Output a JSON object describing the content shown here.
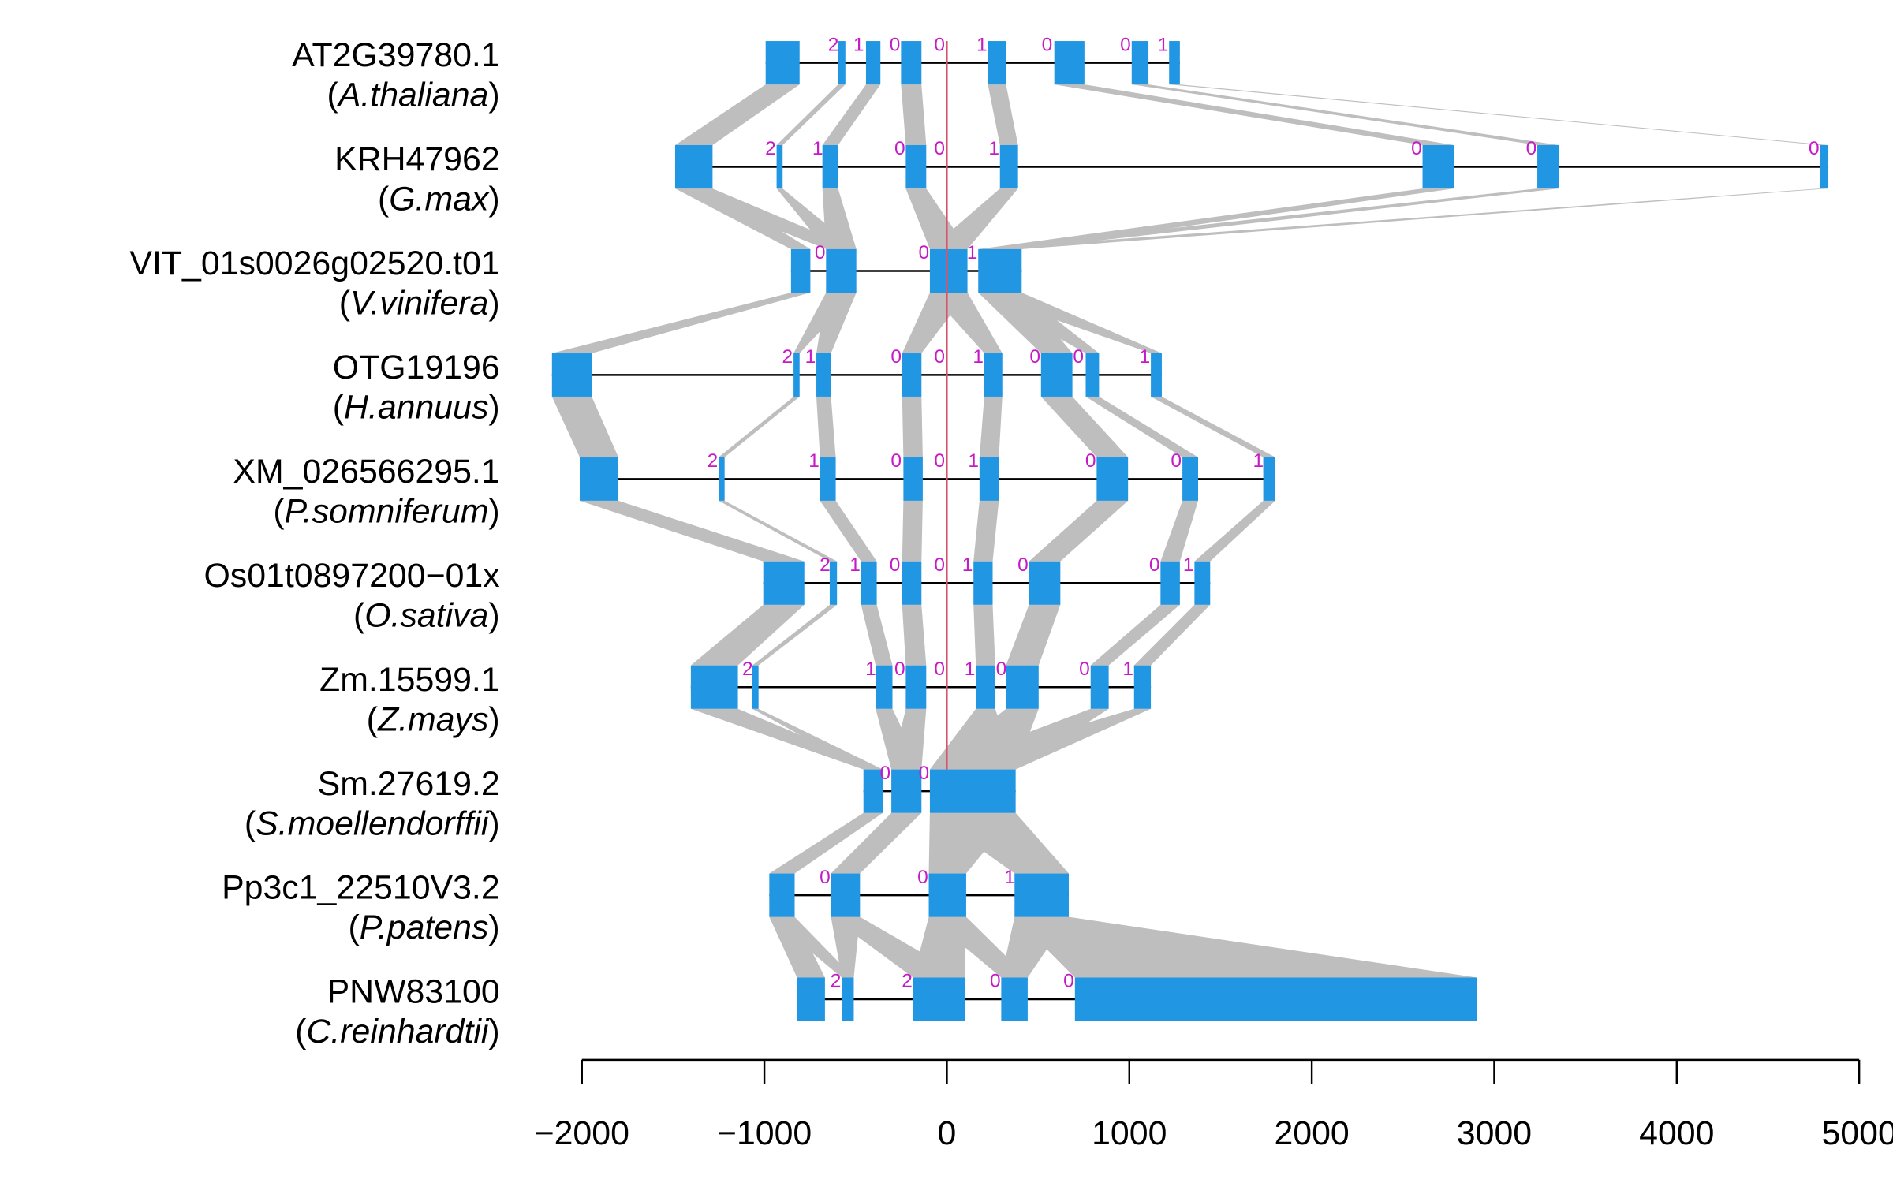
{
  "colors": {
    "exon": "#2196e3",
    "link": "#bebebe",
    "intron": "#000000",
    "phase": "#c71ac7",
    "reference_line": "#d9536a"
  },
  "chart_data": {
    "type": "gene-structure-alignment",
    "xlim": [
      -2000,
      5000
    ],
    "xticks": [
      -2000,
      -1000,
      0,
      1000,
      2000,
      3000,
      4000,
      5000
    ],
    "xtick_labels": [
      "−2000",
      "−1000",
      "0",
      "1000",
      "2000",
      "3000",
      "4000",
      "5000"
    ],
    "reference_position": 0,
    "genes": [
      {
        "id": "AT2G39780.1",
        "species": "A.thaliana",
        "exons": [
          [
            -993,
            -807
          ],
          [
            -596,
            -556
          ],
          [
            -443,
            -364
          ],
          [
            -251,
            -139
          ],
          [
            225,
            324
          ],
          [
            589,
            754
          ],
          [
            1013,
            1105
          ],
          [
            1218,
            1277
          ]
        ],
        "phases": [
          {
            "pos": -622,
            "label": "2"
          },
          {
            "pos": -483,
            "label": "1"
          },
          {
            "pos": -285,
            "label": "0"
          },
          {
            "pos": -40,
            "label": "0"
          },
          {
            "pos": 192,
            "label": "1"
          },
          {
            "pos": 549,
            "label": "0"
          },
          {
            "pos": 979,
            "label": "0"
          },
          {
            "pos": 1185,
            "label": "1"
          }
        ]
      },
      {
        "id": "KRH47962",
        "species": "G.max",
        "exons": [
          [
            -1489,
            -1284
          ],
          [
            -933,
            -900
          ],
          [
            -682,
            -596
          ],
          [
            -225,
            -113
          ],
          [
            291,
            390
          ],
          [
            2607,
            2780
          ],
          [
            3236,
            3355
          ],
          [
            4785,
            4831
          ]
        ],
        "phases": [
          {
            "pos": -966,
            "label": "2"
          },
          {
            "pos": -708,
            "label": "1"
          },
          {
            "pos": -258,
            "label": "0"
          },
          {
            "pos": -40,
            "label": "0"
          },
          {
            "pos": 258,
            "label": "1"
          },
          {
            "pos": 2574,
            "label": "0"
          },
          {
            "pos": 3203,
            "label": "0"
          },
          {
            "pos": 4752,
            "label": "0"
          }
        ]
      },
      {
        "id": "VIT_01s0026g02520.t01",
        "species": "V.vinifera",
        "exons": [
          [
            -854,
            -748
          ],
          [
            -662,
            -496
          ],
          [
            -93,
            113
          ],
          [
            172,
            410
          ]
        ],
        "phases": [
          {
            "pos": -695,
            "label": "0"
          },
          {
            "pos": -126,
            "label": "0"
          },
          {
            "pos": 139,
            "label": "1"
          }
        ]
      },
      {
        "id": "OTG19196",
        "species": "H.annuus",
        "exons": [
          [
            -2164,
            -1946
          ],
          [
            -840,
            -807
          ],
          [
            -715,
            -635
          ],
          [
            -245,
            -139
          ],
          [
            205,
            304
          ],
          [
            516,
            688
          ],
          [
            761,
            834
          ],
          [
            1118,
            1178
          ]
        ],
        "phases": [
          {
            "pos": -874,
            "label": "2"
          },
          {
            "pos": -748,
            "label": "1"
          },
          {
            "pos": -278,
            "label": "0"
          },
          {
            "pos": -40,
            "label": "0"
          },
          {
            "pos": 172,
            "label": "1"
          },
          {
            "pos": 483,
            "label": "0"
          },
          {
            "pos": 721,
            "label": "0"
          },
          {
            "pos": 1085,
            "label": "1"
          }
        ]
      },
      {
        "id": "XM_026566295.1",
        "species": "P.somniferum",
        "exons": [
          [
            -2012,
            -1800
          ],
          [
            -1251,
            -1218
          ],
          [
            -695,
            -609
          ],
          [
            -238,
            -132
          ],
          [
            179,
            285
          ],
          [
            821,
            993
          ],
          [
            1291,
            1377
          ],
          [
            1734,
            1800
          ]
        ],
        "phases": [
          {
            "pos": -1284,
            "label": "2"
          },
          {
            "pos": -728,
            "label": "1"
          },
          {
            "pos": -278,
            "label": "0"
          },
          {
            "pos": -40,
            "label": "0"
          },
          {
            "pos": 146,
            "label": "1"
          },
          {
            "pos": 788,
            "label": "0"
          },
          {
            "pos": 1257,
            "label": "0"
          },
          {
            "pos": 1707,
            "label": "1"
          }
        ]
      },
      {
        "id": "Os01t0897200−01x",
        "species": "O.sativa",
        "exons": [
          [
            -1006,
            -781
          ],
          [
            -642,
            -602
          ],
          [
            -470,
            -384
          ],
          [
            -245,
            -139
          ],
          [
            146,
            251
          ],
          [
            450,
            622
          ],
          [
            1171,
            1277
          ],
          [
            1357,
            1443
          ]
        ],
        "phases": [
          {
            "pos": -668,
            "label": "2"
          },
          {
            "pos": -503,
            "label": "1"
          },
          {
            "pos": -285,
            "label": "0"
          },
          {
            "pos": -40,
            "label": "0"
          },
          {
            "pos": 113,
            "label": "1"
          },
          {
            "pos": 417,
            "label": "0"
          },
          {
            "pos": 1138,
            "label": "0"
          },
          {
            "pos": 1324,
            "label": "1"
          }
        ]
      },
      {
        "id": "Zm.15599.1",
        "species": "Z.mays",
        "exons": [
          [
            -1403,
            -1145
          ],
          [
            -1066,
            -1032
          ],
          [
            -390,
            -298
          ],
          [
            -225,
            -113
          ],
          [
            159,
            265
          ],
          [
            324,
            503
          ],
          [
            788,
            887
          ],
          [
            1026,
            1118
          ]
        ],
        "phases": [
          {
            "pos": -1092,
            "label": "2"
          },
          {
            "pos": -417,
            "label": "1"
          },
          {
            "pos": -258,
            "label": "0"
          },
          {
            "pos": -40,
            "label": "0"
          },
          {
            "pos": 126,
            "label": "1"
          },
          {
            "pos": 298,
            "label": "0"
          },
          {
            "pos": 754,
            "label": "0"
          },
          {
            "pos": 993,
            "label": "1"
          }
        ]
      },
      {
        "id": "Sm.27619.2",
        "species": "S.moellendorffii",
        "exons": [
          [
            -457,
            -351
          ],
          [
            -304,
            -139
          ],
          [
            -93,
            377
          ]
        ],
        "phases": [
          {
            "pos": -338,
            "label": "0"
          },
          {
            "pos": -126,
            "label": "0"
          }
        ]
      },
      {
        "id": "Pp3c1_22510V3.2",
        "species": "P.patens",
        "exons": [
          [
            -973,
            -834
          ],
          [
            -635,
            -476
          ],
          [
            -99,
            106
          ],
          [
            371,
            668
          ]
        ],
        "phases": [
          {
            "pos": -668,
            "label": "0"
          },
          {
            "pos": -132,
            "label": "0"
          },
          {
            "pos": 344,
            "label": "1"
          }
        ]
      },
      {
        "id": "PNW83100",
        "species": "C.reinhardtii",
        "exons": [
          [
            -821,
            -668
          ],
          [
            -576,
            -510
          ],
          [
            -185,
            99
          ],
          [
            298,
            443
          ],
          [
            702,
            2905
          ]
        ],
        "phases": [
          {
            "pos": -609,
            "label": "2"
          },
          {
            "pos": -218,
            "label": "2"
          },
          {
            "pos": 265,
            "label": "0"
          },
          {
            "pos": 668,
            "label": "0"
          }
        ]
      }
    ],
    "links": [
      [
        [
          0,
          0
        ],
        [
          1,
          1
        ],
        [
          2,
          2
        ],
        [
          3,
          3
        ],
        [
          4,
          4
        ],
        [
          5,
          5
        ],
        [
          6,
          6
        ],
        [
          7,
          7
        ]
      ],
      [
        [
          0,
          0
        ],
        [
          0,
          1
        ],
        [
          1,
          1
        ],
        [
          2,
          1
        ],
        [
          3,
          2
        ],
        [
          4,
          2
        ],
        [
          5,
          3
        ],
        [
          6,
          3
        ],
        [
          7,
          3
        ]
      ],
      [
        [
          0,
          0
        ],
        [
          1,
          1
        ],
        [
          1,
          2
        ],
        [
          2,
          3
        ],
        [
          2,
          4
        ],
        [
          3,
          5
        ],
        [
          3,
          6
        ],
        [
          3,
          7
        ]
      ],
      [
        [
          0,
          0
        ],
        [
          1,
          1
        ],
        [
          2,
          2
        ],
        [
          3,
          3
        ],
        [
          4,
          4
        ],
        [
          5,
          5
        ],
        [
          6,
          6
        ],
        [
          7,
          7
        ]
      ],
      [
        [
          0,
          0
        ],
        [
          1,
          1
        ],
        [
          2,
          2
        ],
        [
          3,
          3
        ],
        [
          4,
          4
        ],
        [
          5,
          5
        ],
        [
          6,
          6
        ],
        [
          7,
          7
        ]
      ],
      [
        [
          0,
          0
        ],
        [
          1,
          1
        ],
        [
          2,
          2
        ],
        [
          3,
          3
        ],
        [
          4,
          4
        ],
        [
          5,
          5
        ],
        [
          6,
          6
        ],
        [
          7,
          7
        ]
      ],
      [
        [
          0,
          0
        ],
        [
          1,
          0
        ],
        [
          2,
          1
        ],
        [
          3,
          1
        ],
        [
          4,
          2
        ],
        [
          5,
          2
        ],
        [
          6,
          2
        ],
        [
          7,
          2
        ]
      ],
      [
        [
          0,
          0
        ],
        [
          1,
          1
        ],
        [
          2,
          2
        ],
        [
          2,
          3
        ]
      ],
      [
        [
          0,
          0
        ],
        [
          0,
          1
        ],
        [
          1,
          1
        ],
        [
          1,
          2
        ],
        [
          2,
          2
        ],
        [
          2,
          3
        ],
        [
          3,
          3
        ],
        [
          3,
          4
        ]
      ]
    ]
  }
}
